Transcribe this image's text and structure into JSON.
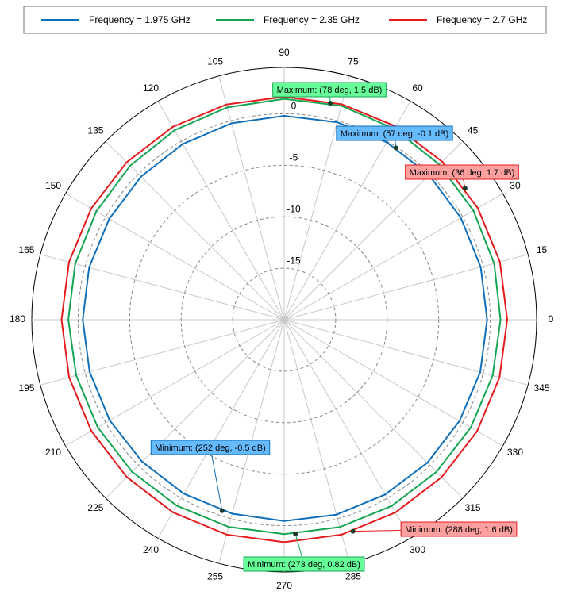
{
  "chart_data": {
    "type": "polar",
    "theta": [
      0,
      15,
      30,
      45,
      60,
      75,
      90,
      105,
      120,
      135,
      150,
      165,
      180,
      195,
      210,
      225,
      240,
      255,
      270,
      285,
      300,
      315,
      330,
      345
    ],
    "series": [
      {
        "name": "Frequency = 1.975 GHz",
        "color": "#0f6fba",
        "values": [
          -0.3,
          -0.25,
          -0.2,
          -0.12,
          -0.1,
          -0.15,
          -0.2,
          -0.25,
          -0.3,
          -0.35,
          -0.4,
          -0.4,
          -0.45,
          -0.45,
          -0.45,
          -0.5,
          -0.5,
          -0.5,
          -0.45,
          -0.4,
          -0.4,
          -0.35,
          -0.35,
          -0.3
        ]
      },
      {
        "name": "Frequency = 2.35 GHz",
        "color": "#14a553",
        "values": [
          1.0,
          1.1,
          1.2,
          1.3,
          1.4,
          1.5,
          1.45,
          1.35,
          1.25,
          1.15,
          1.05,
          1.0,
          0.95,
          0.9,
          0.9,
          0.88,
          0.85,
          0.83,
          0.82,
          0.85,
          0.88,
          0.9,
          0.92,
          0.95
        ]
      },
      {
        "name": "Frequency = 2.7 GHz",
        "color": "#e41a1c",
        "values": [
          1.65,
          1.68,
          1.7,
          1.7,
          1.68,
          1.66,
          1.65,
          1.64,
          1.63,
          1.62,
          1.62,
          1.62,
          1.61,
          1.61,
          1.61,
          1.61,
          1.6,
          1.6,
          1.6,
          1.6,
          1.61,
          1.62,
          1.63,
          1.64
        ]
      }
    ],
    "rlim": [
      -20,
      4.5
    ],
    "rticks": [
      -15,
      -10,
      -5,
      0
    ],
    "thetaticks": [
      0,
      15,
      30,
      45,
      60,
      75,
      90,
      105,
      120,
      135,
      150,
      165,
      180,
      195,
      210,
      225,
      240,
      255,
      270,
      285,
      300,
      315,
      330,
      345
    ],
    "grid": true,
    "legend": "top",
    "annotations": [
      {
        "series": 1,
        "theta": 78,
        "value": 1.5,
        "label": "Maximum: (78 deg, 1.5 dB)",
        "fill": "#66ff99"
      },
      {
        "series": 0,
        "theta": 57,
        "value": -0.1,
        "label": "Maximum: (57 deg, -0.1 dB)",
        "fill": "#66bbff"
      },
      {
        "series": 2,
        "theta": 36,
        "value": 1.7,
        "label": "Maximum: (36 deg, 1.7 dB)",
        "fill": "#ffa0a0"
      },
      {
        "series": 0,
        "theta": 252,
        "value": -0.5,
        "label": "Minimum: (252 deg, -0.5 dB)",
        "fill": "#66bbff"
      },
      {
        "series": 2,
        "theta": 288,
        "value": 1.6,
        "label": "Minimum: (288 deg, 1.6 dB)",
        "fill": "#ffa0a0"
      },
      {
        "series": 1,
        "theta": 273,
        "value": 0.82,
        "label": "Minimum: (273 deg, 0.82 dB)",
        "fill": "#66ff99"
      }
    ]
  }
}
